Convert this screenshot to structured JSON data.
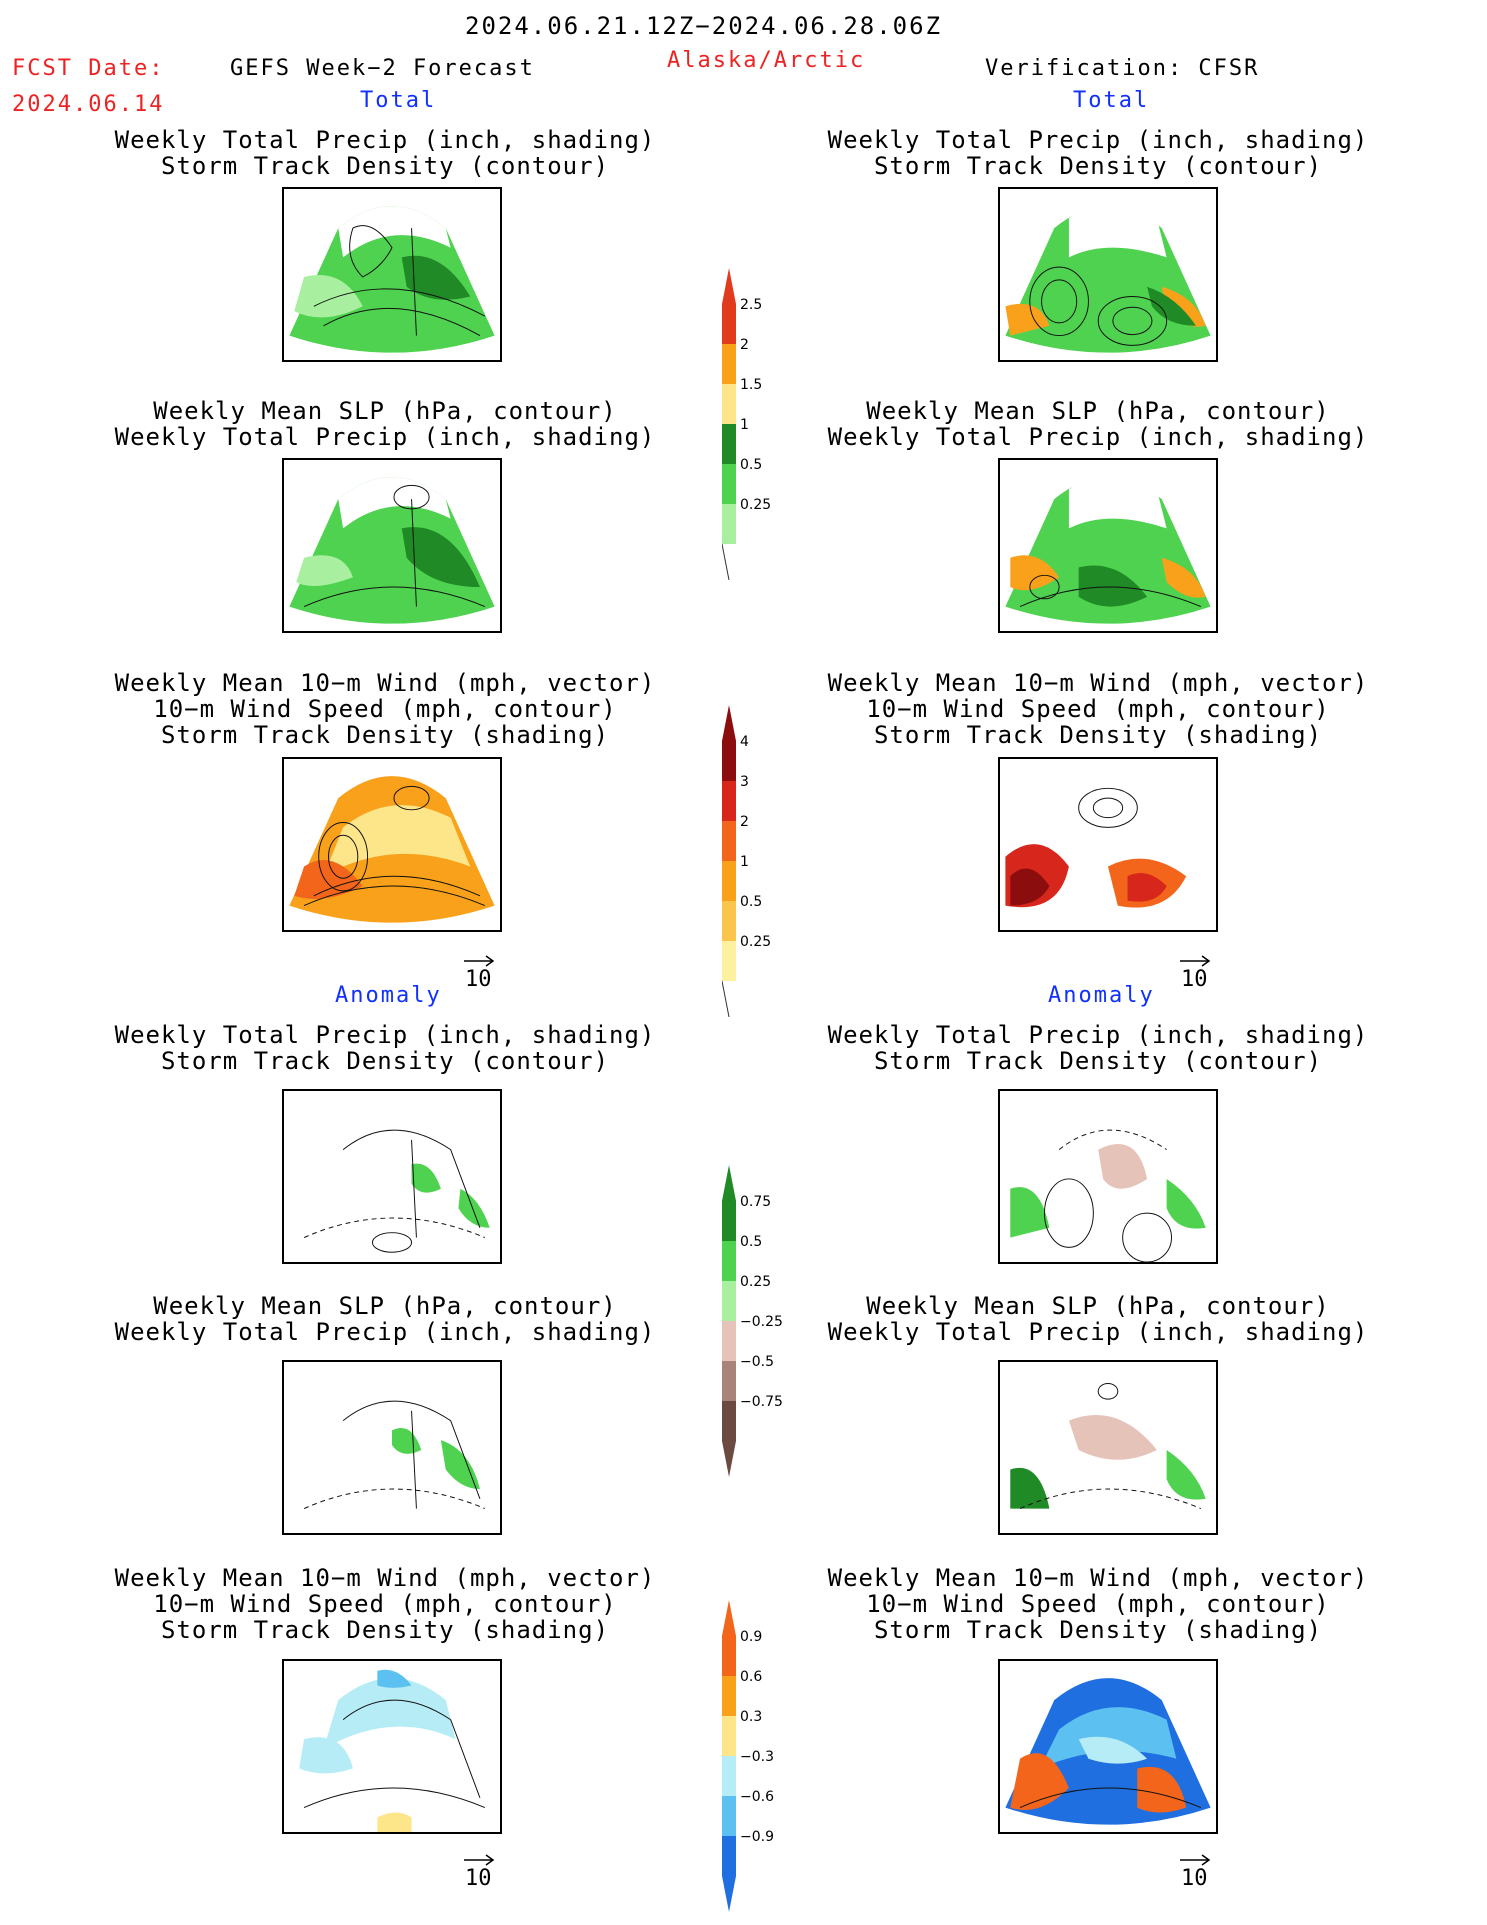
{
  "header": {
    "date_range": "2024.06.21.12Z−2024.06.28.06Z",
    "fcst_date_label": "FCST Date:",
    "fcst_date_value": "2024.06.14",
    "left_title": "GEFS Week−2 Forecast",
    "region": "Alaska/Arctic",
    "right_title": "Verification: CFSR"
  },
  "sections": {
    "total": "Total",
    "anomaly": "Anomaly"
  },
  "titles": {
    "precip_storm": [
      "Weekly Total Precip (inch, shading)",
      "Storm Track Density (contour)"
    ],
    "slp_precip": [
      "Weekly Mean SLP (hPa, contour)",
      "Weekly Total Precip (inch, shading)"
    ],
    "wind": [
      "Weekly Mean 10−m Wind (mph, vector)",
      "10−m Wind Speed (mph, contour)",
      "Storm Track Density (shading)"
    ]
  },
  "vector_ref": "10",
  "colorbars": {
    "precip_total": {
      "labels": [
        "2.5",
        "2",
        "1.5",
        "1",
        "0.5",
        "0.25"
      ],
      "colors": [
        "#e23a1c",
        "#f9a11b",
        "#fde68a",
        "#1f8a26",
        "#4fd24f",
        "#a8f0a0"
      ]
    },
    "storm_total": {
      "labels": [
        "4",
        "3",
        "2",
        "1",
        "0.5",
        "0.25"
      ],
      "colors": [
        "#8c0d0d",
        "#d7261b",
        "#f2651a",
        "#f9a11b",
        "#fbc44a",
        "#fdf0a0"
      ]
    },
    "precip_anom": {
      "labels": [
        "0.75",
        "0.5",
        "0.25",
        "−0.25",
        "−0.5",
        "−0.75"
      ],
      "colors": [
        "#1f8a26",
        "#4fd24f",
        "#a8f0a0",
        "#e6c3b8",
        "#a8837a",
        "#6b4a42"
      ]
    },
    "storm_anom": {
      "labels": [
        "0.9",
        "0.6",
        "0.3",
        "−0.3",
        "−0.6",
        "−0.9"
      ],
      "colors": [
        "#f2651a",
        "#f9a11b",
        "#fde68a",
        "#b6ecf6",
        "#5cc0f0",
        "#1f6fe0"
      ]
    }
  }
}
